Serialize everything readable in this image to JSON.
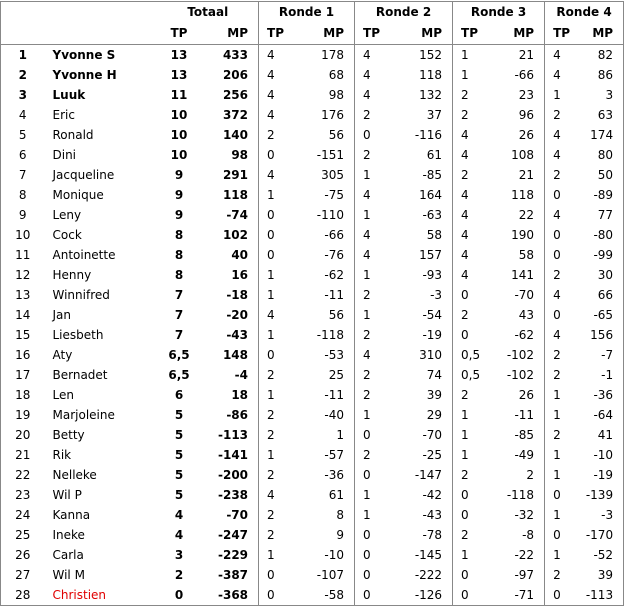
{
  "header": {
    "groups": [
      "Totaal",
      "Ronde 1",
      "Ronde 2",
      "Ronde 3",
      "Ronde 4"
    ],
    "columns": [
      "TP",
      "MP",
      "TP",
      "MP",
      "TP",
      "MP",
      "TP",
      "MP",
      "TP",
      "MP"
    ]
  },
  "table": {
    "rows": [
      {
        "rank": "1",
        "name": "Yvonne S",
        "cells": [
          "13",
          "433",
          "4",
          "178",
          "4",
          "152",
          "1",
          "21",
          "4",
          "82"
        ]
      },
      {
        "rank": "2",
        "name": "Yvonne H",
        "cells": [
          "13",
          "206",
          "4",
          "68",
          "4",
          "118",
          "1",
          "-66",
          "4",
          "86"
        ]
      },
      {
        "rank": "3",
        "name": "Luuk",
        "cells": [
          "11",
          "256",
          "4",
          "98",
          "4",
          "132",
          "2",
          "23",
          "1",
          "3"
        ]
      },
      {
        "rank": "4",
        "name": "Eric",
        "cells": [
          "10",
          "372",
          "4",
          "176",
          "2",
          "37",
          "2",
          "96",
          "2",
          "63"
        ]
      },
      {
        "rank": "5",
        "name": "Ronald",
        "cells": [
          "10",
          "140",
          "2",
          "56",
          "0",
          "-116",
          "4",
          "26",
          "4",
          "174"
        ]
      },
      {
        "rank": "6",
        "name": "Dini",
        "cells": [
          "10",
          "98",
          "0",
          "-151",
          "2",
          "61",
          "4",
          "108",
          "4",
          "80"
        ]
      },
      {
        "rank": "7",
        "name": "Jacqueline",
        "cells": [
          "9",
          "291",
          "4",
          "305",
          "1",
          "-85",
          "2",
          "21",
          "2",
          "50"
        ]
      },
      {
        "rank": "8",
        "name": "Monique",
        "cells": [
          "9",
          "118",
          "1",
          "-75",
          "4",
          "164",
          "4",
          "118",
          "0",
          "-89"
        ]
      },
      {
        "rank": "9",
        "name": "Leny",
        "cells": [
          "9",
          "-74",
          "0",
          "-110",
          "1",
          "-63",
          "4",
          "22",
          "4",
          "77"
        ]
      },
      {
        "rank": "10",
        "name": "Cock",
        "cells": [
          "8",
          "102",
          "0",
          "-66",
          "4",
          "58",
          "4",
          "190",
          "0",
          "-80"
        ]
      },
      {
        "rank": "11",
        "name": "Antoinette",
        "cells": [
          "8",
          "40",
          "0",
          "-76",
          "4",
          "157",
          "4",
          "58",
          "0",
          "-99"
        ]
      },
      {
        "rank": "12",
        "name": "Henny",
        "cells": [
          "8",
          "16",
          "1",
          "-62",
          "1",
          "-93",
          "4",
          "141",
          "2",
          "30"
        ]
      },
      {
        "rank": "13",
        "name": "Winnifred",
        "cells": [
          "7",
          "-18",
          "1",
          "-11",
          "2",
          "-3",
          "0",
          "-70",
          "4",
          "66"
        ]
      },
      {
        "rank": "14",
        "name": "Jan",
        "cells": [
          "7",
          "-20",
          "4",
          "56",
          "1",
          "-54",
          "2",
          "43",
          "0",
          "-65"
        ]
      },
      {
        "rank": "15",
        "name": "Liesbeth",
        "cells": [
          "7",
          "-43",
          "1",
          "-118",
          "2",
          "-19",
          "0",
          "-62",
          "4",
          "156"
        ]
      },
      {
        "rank": "16",
        "name": "Aty",
        "cells": [
          "6,5",
          "148",
          "0",
          "-53",
          "4",
          "310",
          "0,5",
          "-102",
          "2",
          "-7"
        ]
      },
      {
        "rank": "17",
        "name": "Bernadet",
        "cells": [
          "6,5",
          "-4",
          "2",
          "25",
          "2",
          "74",
          "0,5",
          "-102",
          "2",
          "-1"
        ]
      },
      {
        "rank": "18",
        "name": "Len",
        "cells": [
          "6",
          "18",
          "1",
          "-11",
          "2",
          "39",
          "2",
          "26",
          "1",
          "-36"
        ]
      },
      {
        "rank": "19",
        "name": "Marjoleine",
        "cells": [
          "5",
          "-86",
          "2",
          "-40",
          "1",
          "29",
          "1",
          "-11",
          "1",
          "-64"
        ]
      },
      {
        "rank": "20",
        "name": "Betty",
        "cells": [
          "5",
          "-113",
          "2",
          "1",
          "0",
          "-70",
          "1",
          "-85",
          "2",
          "41"
        ]
      },
      {
        "rank": "21",
        "name": "Rik",
        "cells": [
          "5",
          "-141",
          "1",
          "-57",
          "2",
          "-25",
          "1",
          "-49",
          "1",
          "-10"
        ]
      },
      {
        "rank": "22",
        "name": "Nelleke",
        "cells": [
          "5",
          "-200",
          "2",
          "-36",
          "0",
          "-147",
          "2",
          "2",
          "1",
          "-19"
        ]
      },
      {
        "rank": "23",
        "name": "Wil P",
        "cells": [
          "5",
          "-238",
          "4",
          "61",
          "1",
          "-42",
          "0",
          "-118",
          "0",
          "-139"
        ]
      },
      {
        "rank": "24",
        "name": "Kanna",
        "cells": [
          "4",
          "-70",
          "2",
          "8",
          "1",
          "-43",
          "0",
          "-32",
          "1",
          "-3"
        ]
      },
      {
        "rank": "25",
        "name": "Ineke",
        "cells": [
          "4",
          "-247",
          "2",
          "9",
          "0",
          "-78",
          "2",
          "-8",
          "0",
          "-170"
        ]
      },
      {
        "rank": "26",
        "name": "Carla",
        "cells": [
          "3",
          "-229",
          "1",
          "-10",
          "0",
          "-145",
          "1",
          "-22",
          "1",
          "-52"
        ]
      },
      {
        "rank": "27",
        "name": "Wil M",
        "cells": [
          "2",
          "-387",
          "0",
          "-107",
          "0",
          "-222",
          "0",
          "-97",
          "2",
          "39"
        ]
      },
      {
        "rank": "28",
        "name": "Christien",
        "cells": [
          "0",
          "-368",
          "0",
          "-58",
          "0",
          "-126",
          "0",
          "-71",
          "0",
          "-113"
        ]
      }
    ]
  }
}
